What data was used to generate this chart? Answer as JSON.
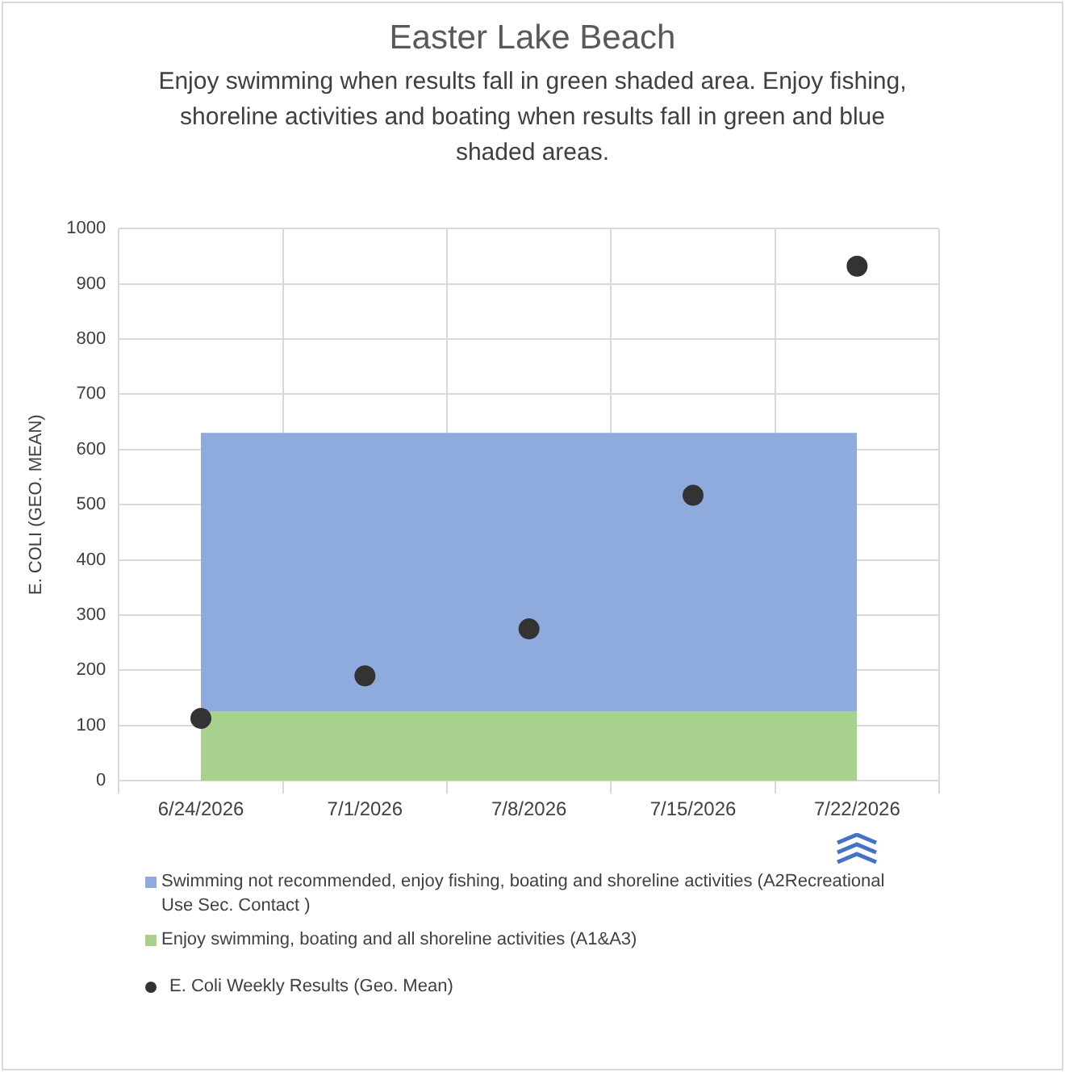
{
  "chart_data": {
    "type": "area",
    "title": "Easter Lake Beach",
    "subtitle": "Enjoy swimming when results fall in green shaded area. Enjoy fishing, shoreline activities and boating when results fall in green and blue shaded areas.",
    "ylabel": "E. COLI (GEO. MEAN)",
    "categories": [
      "6/24/2026",
      "7/1/2026",
      "7/8/2026",
      "7/15/2026",
      "7/22/2026"
    ],
    "stacked": true,
    "series": [
      {
        "name": "Enjoy swimming, boating and all shoreline activities (A1&A3)",
        "color": "#a9d18e",
        "values": [
          126,
          126,
          126,
          126,
          126
        ]
      },
      {
        "name": "Swimming not recommended, enjoy fishing, boating and shoreline activities (A2Recreational Use Sec. Contact )",
        "color": "#8faadc",
        "values": [
          504,
          504,
          504,
          504,
          504
        ]
      },
      {
        "name": "E. Coli Weekly Results (Geo. Mean)",
        "type": "scatter",
        "marker": "circle",
        "color": "#333333",
        "values": [
          113,
          190,
          275,
          517,
          932
        ]
      }
    ],
    "ylim": [
      0,
      1000
    ],
    "yticks": [
      0,
      100,
      200,
      300,
      400,
      500,
      600,
      700,
      800,
      900,
      1000
    ],
    "grid": true,
    "legend": "bottom"
  }
}
